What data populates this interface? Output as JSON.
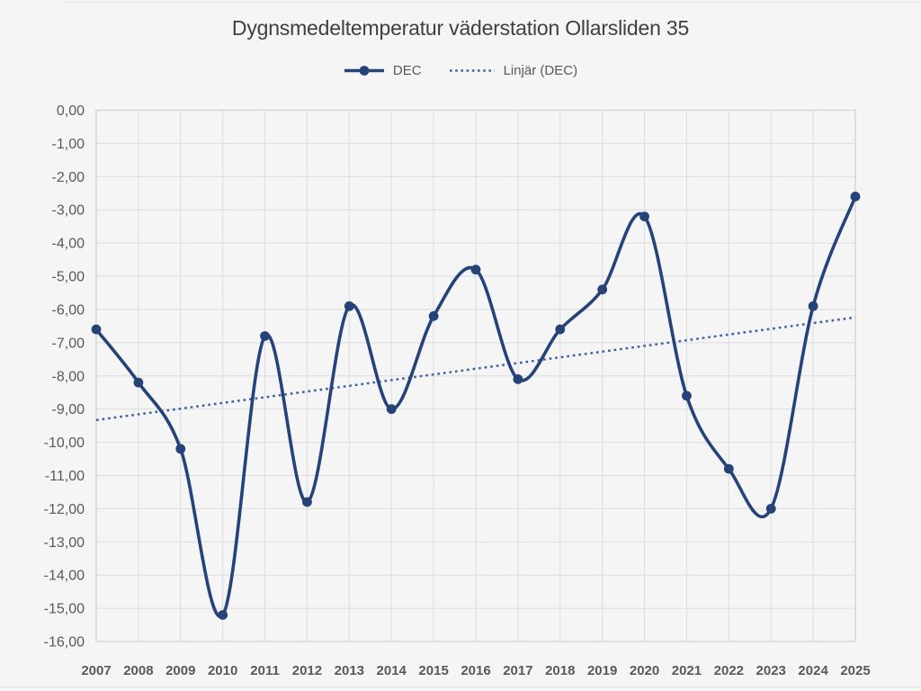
{
  "header": {
    "title": "Dygnsmedeltemperatur väderstation Ollarsliden 35"
  },
  "legend": {
    "items": [
      {
        "label": "DEC",
        "glyph": "line-with-marker-icon"
      },
      {
        "label": "Linjär (DEC)",
        "glyph": "dotted-line-icon"
      }
    ]
  },
  "colors": {
    "series_line": "#254379",
    "trend_line": "#3e63a4",
    "gridline": "#dcdcde",
    "plot_border": "#cfcfd2",
    "axis_label": "#595959",
    "title_text": "#3f3f3f",
    "background": "#f5f5f6"
  },
  "chart_data": {
    "type": "line",
    "title": "Dygnsmedeltemperatur väderstation Ollarsliden 35",
    "categories": [
      "2007",
      "2008",
      "2009",
      "2010",
      "2011",
      "2012",
      "2013",
      "2014",
      "2015",
      "2016",
      "2017",
      "2018",
      "2019",
      "2020",
      "2021",
      "2022",
      "2023",
      "2024",
      "2025"
    ],
    "series": [
      {
        "name": "DEC",
        "style": "smooth_line_with_markers",
        "color": "#254379",
        "values": [
          -6.6,
          -8.2,
          -10.2,
          -15.2,
          -6.8,
          -11.8,
          -5.9,
          -9.0,
          -6.2,
          -4.8,
          -8.1,
          -6.6,
          -5.4,
          -3.2,
          -8.6,
          -10.8,
          -12.0,
          -5.9,
          -2.6
        ]
      },
      {
        "name": "Linjär (DEC)",
        "style": "dotted_linear_trendline",
        "color": "#3e63a4",
        "trend_start": -9.33,
        "trend_end": -6.24
      }
    ],
    "xlabel": "",
    "ylabel": "",
    "ylim": [
      -16,
      0
    ],
    "ytick_step": 1,
    "ytick_labels": [
      "0,00",
      "-1,00",
      "-2,00",
      "-3,00",
      "-4,00",
      "-5,00",
      "-6,00",
      "-7,00",
      "-8,00",
      "-9,00",
      "-10,00",
      "-11,00",
      "-12,00",
      "-13,00",
      "-14,00",
      "-15,00",
      "-16,00"
    ],
    "grid": true,
    "legend_position": "top"
  }
}
